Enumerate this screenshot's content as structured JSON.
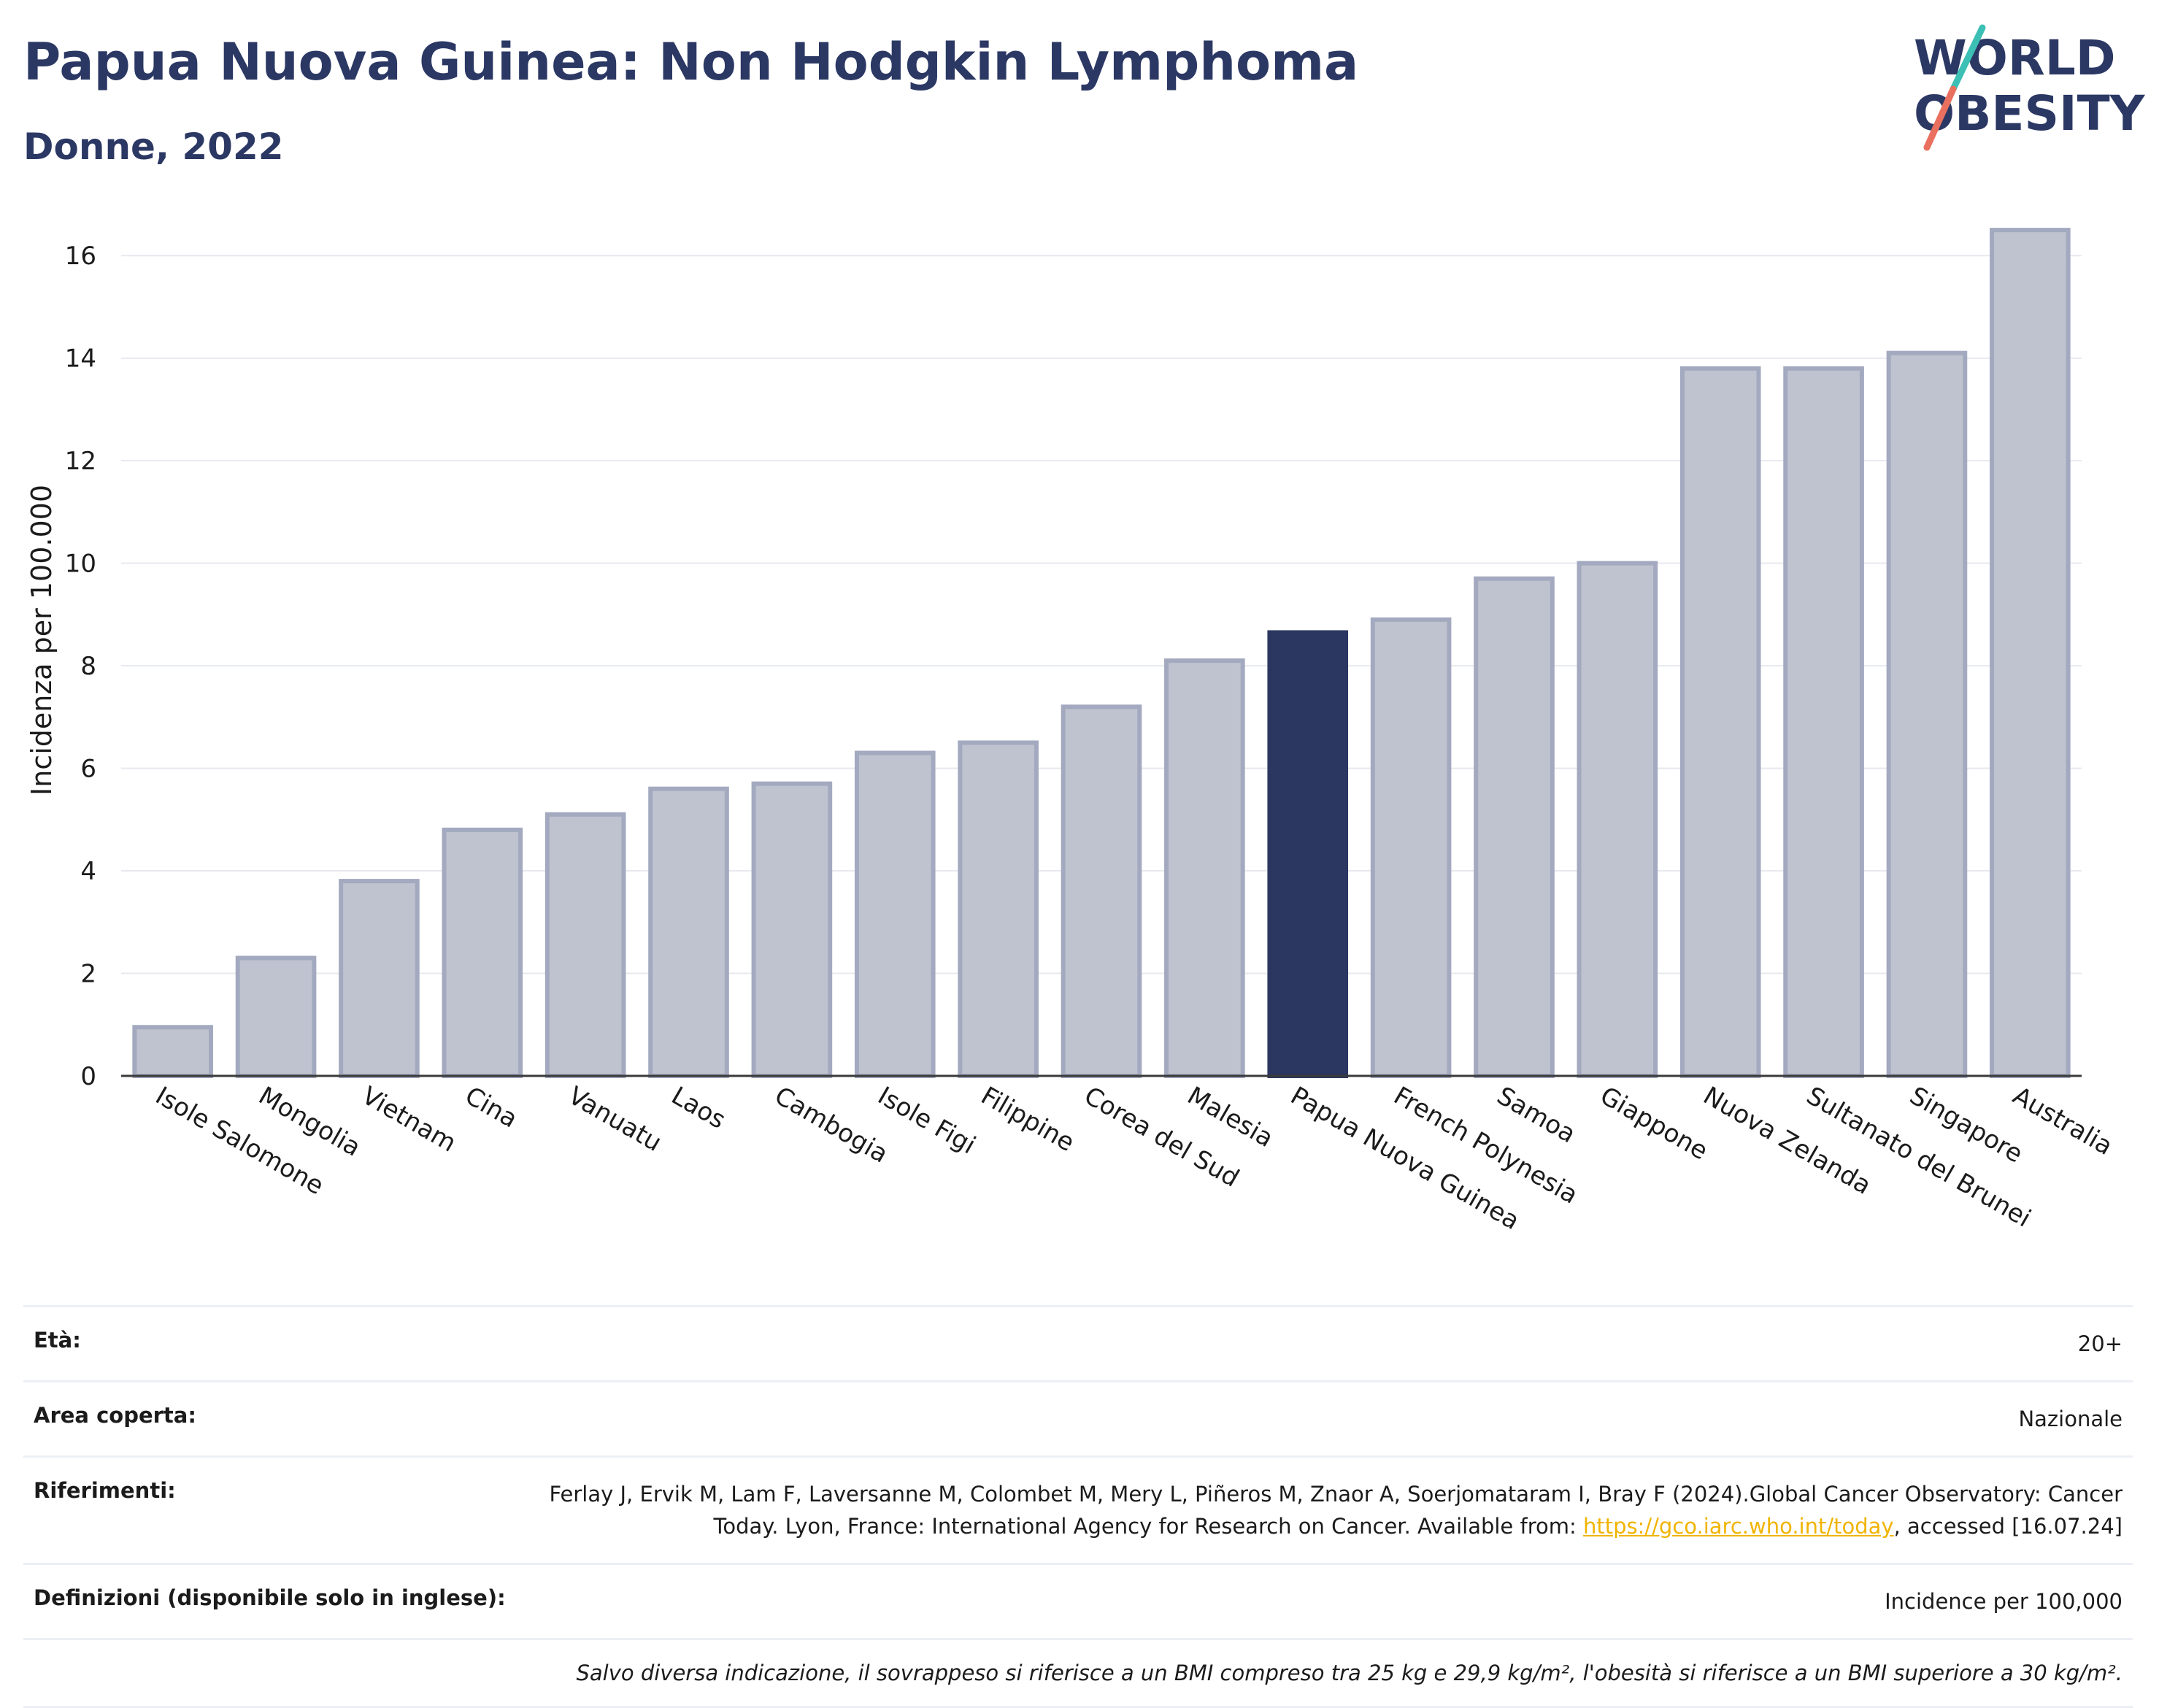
{
  "header": {
    "title": "Papua Nuova Guinea: Non Hodgkin Lymphoma",
    "subtitle": "Donne, 2022",
    "logo_line1": "WORLD",
    "logo_line2": "OBESITY"
  },
  "colors": {
    "highlight_bar": "#2b3661",
    "other_bar_fill": "#bfc3cf",
    "other_bar_border": "#a3a9bf",
    "title": "#2b3864",
    "logo_teal": "#3cbfb4",
    "logo_coral": "#e9705e",
    "link": "#f0b400"
  },
  "chart_data": {
    "type": "bar",
    "title": "Papua Nuova Guinea: Non Hodgkin Lymphoma",
    "subtitle": "Donne, 2022",
    "ylabel": "Incidenza per 100.000",
    "xlabel": "",
    "ylim": [
      0,
      17
    ],
    "yticks": [
      0,
      2,
      4,
      6,
      8,
      10,
      12,
      14,
      16
    ],
    "grid": true,
    "highlight": "Papua Nuova Guinea",
    "categories": [
      "Isole Salomone",
      "Mongolia",
      "Vietnam",
      "Cina",
      "Vanuatu",
      "Laos",
      "Cambogia",
      "Isole Figi",
      "Filippine",
      "Corea del Sud",
      "Malesia",
      "Papua Nuova Guinea",
      "French Polynesia",
      "Samoa",
      "Giappone",
      "Nuova Zelanda",
      "Sultanato del Brunei",
      "Singapore",
      "Australia"
    ],
    "values": [
      0.95,
      2.3,
      3.8,
      4.8,
      5.1,
      5.6,
      5.7,
      6.3,
      6.5,
      7.2,
      8.1,
      8.65,
      8.9,
      9.7,
      10.0,
      13.8,
      13.8,
      14.1,
      16.5
    ]
  },
  "info": {
    "age_label": "Età:",
    "age_value": "20+",
    "area_label": "Area coperta:",
    "area_value": "Nazionale",
    "refs_label": "Riferimenti:",
    "refs_text_1": "Ferlay J, Ervik M, Lam F, Laversanne M, Colombet M, Mery L, Piñeros M, Znaor A, Soerjomataram I, Bray F (2024).Global Cancer Observatory: Cancer Today. Lyon, France: International Agency for Research on Cancer. Available from: ",
    "refs_link": "https://gco.iarc.who.int/today",
    "refs_text_2": ", accessed [16.07.24]",
    "defs_label": "Definizioni (disponibile solo in inglese):",
    "defs_value": "Incidence per 100,000",
    "note": "Salvo diversa indicazione, il sovrappeso si riferisce a un BMI compreso tra 25 kg e 29,9 kg/m², l'obesità si riferisce a un BMI superiore a 30 kg/m²."
  }
}
